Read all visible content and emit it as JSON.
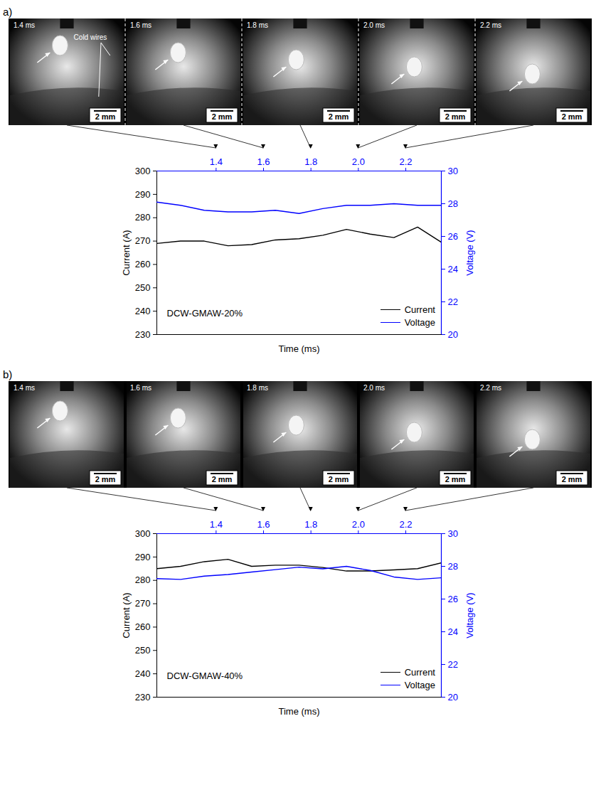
{
  "panels": [
    {
      "label": "a)",
      "frames": [
        "1.4 ms",
        "1.6 ms",
        "1.8 ms",
        "2.0 ms",
        "2.2 ms"
      ],
      "scale_bar": "2 mm",
      "annotation": "Cold wires"
    },
    {
      "label": "b)",
      "frames": [
        "1.4 ms",
        "1.6 ms",
        "1.8 ms",
        "2.0 ms",
        "2.2 ms"
      ],
      "scale_bar": "2 mm"
    }
  ],
  "chart_data": [
    {
      "type": "line",
      "annotation": "DCW-GMAW-20%",
      "xlabel": "Time (ms)",
      "ylabel": "Current (A)",
      "y2label": "Voltage (V)",
      "x": [
        1.15,
        1.25,
        1.35,
        1.45,
        1.55,
        1.65,
        1.75,
        1.85,
        1.95,
        2.05,
        2.15,
        2.25,
        2.35
      ],
      "xlim": [
        1.15,
        2.35
      ],
      "xticks": [
        1.4,
        1.6,
        1.8,
        {
          "value": 2,
          "label": "2.0"
        },
        2.2
      ],
      "ylim": [
        230,
        300
      ],
      "yticks": [
        230,
        240,
        250,
        260,
        270,
        280,
        290,
        300
      ],
      "y2lim": [
        20,
        30
      ],
      "y2ticks": [
        20,
        22,
        24,
        26,
        28,
        30
      ],
      "legend": "bottom-right",
      "series": [
        {
          "name": "Current",
          "color": "#000000",
          "values": [
            269,
            270,
            270,
            268,
            268.5,
            270.5,
            271,
            272.5,
            275,
            273,
            271.5,
            276,
            269.5
          ]
        },
        {
          "name": "Voltage",
          "color": "#0000ff",
          "axis": "y2",
          "values": [
            28.1,
            27.9,
            27.6,
            27.5,
            27.5,
            27.6,
            27.4,
            27.7,
            27.9,
            27.9,
            28.0,
            27.9,
            27.9
          ]
        }
      ]
    },
    {
      "type": "line",
      "annotation": "DCW-GMAW-40%",
      "xlabel": "Time (ms)",
      "ylabel": "Current (A)",
      "y2label": "Voltage (V)",
      "x": [
        1.15,
        1.25,
        1.35,
        1.45,
        1.55,
        1.65,
        1.75,
        1.85,
        1.95,
        2.05,
        2.15,
        2.25,
        2.35
      ],
      "xlim": [
        1.15,
        2.35
      ],
      "xticks": [
        1.4,
        1.6,
        1.8,
        {
          "value": 2,
          "label": "2.0"
        },
        2.2
      ],
      "ylim": [
        230,
        300
      ],
      "yticks": [
        230,
        240,
        250,
        260,
        270,
        280,
        290,
        300
      ],
      "y2lim": [
        20,
        30
      ],
      "y2ticks": [
        20,
        22,
        24,
        26,
        28,
        30
      ],
      "legend": "bottom-right",
      "series": [
        {
          "name": "Current",
          "color": "#000000",
          "values": [
            285,
            286,
            288,
            289,
            286,
            286.5,
            286.5,
            285.5,
            284,
            284,
            284.5,
            285,
            287.5
          ]
        },
        {
          "name": "Voltage",
          "color": "#0000ff",
          "axis": "y2",
          "values": [
            27.25,
            27.2,
            27.4,
            27.5,
            27.65,
            27.8,
            27.95,
            27.85,
            28.0,
            27.75,
            27.35,
            27.2,
            27.3
          ]
        }
      ]
    }
  ]
}
